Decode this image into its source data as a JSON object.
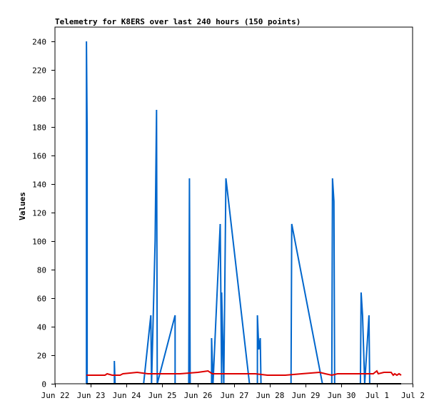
{
  "chart_data": {
    "type": "line",
    "title": "Telemetry for K8ERS over last 240 hours (150 points)",
    "ylabel": "Values",
    "xlabel": "",
    "ylim": [
      0,
      250
    ],
    "yticks": [
      0,
      20,
      40,
      60,
      80,
      100,
      120,
      140,
      160,
      180,
      200,
      220,
      240
    ],
    "xlim": [
      0,
      10
    ],
    "xticks": [
      {
        "x": 0,
        "label": "Jun 22"
      },
      {
        "x": 1,
        "label": "Jun 23"
      },
      {
        "x": 2,
        "label": "Jun 24"
      },
      {
        "x": 3,
        "label": "Jun 25"
      },
      {
        "x": 4,
        "label": "Jun 26"
      },
      {
        "x": 5,
        "label": "Jun 27"
      },
      {
        "x": 6,
        "label": "Jun 28"
      },
      {
        "x": 7,
        "label": "Jun 29"
      },
      {
        "x": 8,
        "label": "Jun 30"
      },
      {
        "x": 9,
        "label": "Jul 1"
      },
      {
        "x": 10,
        "label": "Jul 2"
      }
    ],
    "grid": false,
    "series": [
      {
        "color": "#0066cc",
        "points": [
          [
            0.88,
            0
          ],
          [
            0.88,
            240
          ],
          [
            0.9,
            176
          ],
          [
            0.9,
            0
          ],
          [
            1.66,
            0
          ],
          [
            1.66,
            16
          ],
          [
            1.68,
            0
          ],
          [
            2.48,
            0
          ],
          [
            2.68,
            48
          ],
          [
            2.7,
            0
          ],
          [
            2.8,
            100
          ],
          [
            2.84,
            192
          ],
          [
            2.86,
            0
          ],
          [
            3.36,
            48
          ],
          [
            3.36,
            0
          ],
          [
            3.74,
            0
          ],
          [
            3.76,
            144
          ],
          [
            3.78,
            0
          ],
          [
            4.38,
            0
          ],
          [
            4.38,
            32
          ],
          [
            4.42,
            0
          ],
          [
            4.62,
            112
          ],
          [
            4.66,
            0
          ],
          [
            4.66,
            64
          ],
          [
            4.72,
            0
          ],
          [
            4.78,
            144
          ],
          [
            5.44,
            0
          ],
          [
            5.66,
            0
          ],
          [
            5.66,
            48
          ],
          [
            5.7,
            24
          ],
          [
            5.74,
            32
          ],
          [
            5.76,
            0
          ],
          [
            6.6,
            0
          ],
          [
            6.62,
            112
          ],
          [
            7.48,
            0
          ],
          [
            7.74,
            0
          ],
          [
            7.76,
            144
          ],
          [
            7.8,
            128
          ],
          [
            7.82,
            0
          ],
          [
            8.54,
            0
          ],
          [
            8.56,
            64
          ],
          [
            8.6,
            48
          ],
          [
            8.66,
            0
          ],
          [
            8.78,
            48
          ],
          [
            8.8,
            0
          ]
        ]
      },
      {
        "color": "#dd0000",
        "points": [
          [
            0.88,
            6
          ],
          [
            1.4,
            6
          ],
          [
            1.46,
            7
          ],
          [
            1.6,
            6
          ],
          [
            1.82,
            6
          ],
          [
            1.9,
            7
          ],
          [
            2.3,
            8
          ],
          [
            2.6,
            7
          ],
          [
            3.1,
            7
          ],
          [
            3.5,
            7
          ],
          [
            4.0,
            8
          ],
          [
            4.28,
            9
          ],
          [
            4.4,
            7
          ],
          [
            5.3,
            7
          ],
          [
            5.6,
            7
          ],
          [
            5.94,
            6
          ],
          [
            6.44,
            6
          ],
          [
            6.9,
            7
          ],
          [
            7.4,
            8
          ],
          [
            7.56,
            7
          ],
          [
            7.74,
            6
          ],
          [
            7.9,
            7
          ],
          [
            8.6,
            7
          ],
          [
            8.9,
            7
          ],
          [
            9.0,
            9
          ],
          [
            9.04,
            7
          ],
          [
            9.2,
            8
          ],
          [
            9.4,
            8
          ],
          [
            9.46,
            6
          ],
          [
            9.5,
            7
          ],
          [
            9.56,
            6
          ],
          [
            9.62,
            7
          ],
          [
            9.68,
            6
          ]
        ]
      },
      {
        "color": "#000000",
        "points": [
          [
            0.88,
            0
          ],
          [
            9.68,
            0
          ]
        ]
      }
    ]
  }
}
